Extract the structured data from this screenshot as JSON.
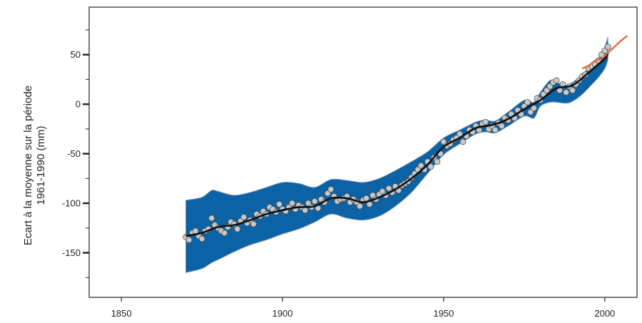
{
  "chart_data": {
    "type": "scatter",
    "ylabel_lines": [
      "Ecart à la moyenne sur la période",
      "1961-1990 (mm)"
    ],
    "xlim": [
      1840,
      2010
    ],
    "ylim": [
      -195,
      98
    ],
    "x_ticks": [
      1850,
      1900,
      1950,
      2000
    ],
    "y_ticks": [
      50,
      0,
      -50,
      -100,
      -150
    ],
    "y_minor_ticks": [
      75,
      25,
      -25,
      -75,
      -125,
      -175
    ],
    "grid": false,
    "colors": {
      "band": "#0b62a4",
      "smooth_line": "#111111",
      "points_fill": "#c8c8c8",
      "points_stroke": "#555555",
      "satellite": "#e06a3c",
      "axis": "#222222"
    },
    "uncertainty_band": {
      "x": [
        1870,
        1875,
        1878,
        1880,
        1885,
        1890,
        1895,
        1900,
        1905,
        1910,
        1915,
        1920,
        1925,
        1930,
        1935,
        1940,
        1945,
        1950,
        1955,
        1960,
        1963,
        1966,
        1970,
        1975,
        1978,
        1980,
        1983,
        1985,
        1988,
        1990,
        1993,
        1996,
        1998,
        2000,
        2001
      ],
      "upper": [
        -97,
        -94,
        -87,
        -88,
        -92,
        -89,
        -84,
        -79,
        -80,
        -84,
        -76,
        -77,
        -79,
        -75,
        -67,
        -58,
        -48,
        -34,
        -26,
        -18,
        -16,
        -17,
        -8,
        4,
        2,
        12,
        24,
        22,
        19,
        22,
        30,
        40,
        46,
        58,
        68
      ],
      "lower": [
        -170,
        -166,
        -160,
        -157,
        -149,
        -142,
        -137,
        -131,
        -126,
        -119,
        -111,
        -115,
        -117,
        -113,
        -103,
        -89,
        -70,
        -51,
        -40,
        -30,
        -28,
        -29,
        -22,
        -12,
        -14,
        -2,
        2,
        2,
        1,
        3,
        10,
        20,
        27,
        36,
        45
      ]
    },
    "smooth_line": {
      "x": [
        1870,
        1875,
        1880,
        1885,
        1890,
        1895,
        1900,
        1905,
        1910,
        1915,
        1920,
        1925,
        1930,
        1935,
        1940,
        1945,
        1950,
        1955,
        1960,
        1965,
        1970,
        1975,
        1980,
        1985,
        1990,
        1995,
        2000,
        2001
      ],
      "y": [
        -133,
        -130,
        -124,
        -122,
        -117,
        -111,
        -107,
        -104,
        -103,
        -95,
        -95,
        -99,
        -94,
        -86,
        -75,
        -61,
        -43,
        -34,
        -24,
        -21,
        -15,
        -5,
        4,
        16,
        19,
        32,
        46,
        52
      ]
    },
    "points": {
      "x": [
        1870,
        1871,
        1872,
        1873,
        1874,
        1875,
        1876,
        1877,
        1878,
        1879,
        1880,
        1881,
        1882,
        1883,
        1884,
        1885,
        1886,
        1887,
        1888,
        1889,
        1890,
        1891,
        1892,
        1893,
        1894,
        1895,
        1896,
        1897,
        1898,
        1899,
        1900,
        1901,
        1902,
        1903,
        1904,
        1905,
        1906,
        1907,
        1908,
        1909,
        1910,
        1911,
        1912,
        1913,
        1914,
        1915,
        1916,
        1917,
        1918,
        1919,
        1920,
        1921,
        1922,
        1923,
        1924,
        1925,
        1926,
        1927,
        1928,
        1929,
        1930,
        1931,
        1932,
        1933,
        1934,
        1935,
        1936,
        1937,
        1938,
        1939,
        1940,
        1941,
        1942,
        1943,
        1944,
        1945,
        1946,
        1947,
        1948,
        1949,
        1950,
        1951,
        1952,
        1953,
        1954,
        1955,
        1956,
        1957,
        1958,
        1959,
        1960,
        1961,
        1962,
        1963,
        1964,
        1965,
        1966,
        1967,
        1968,
        1969,
        1970,
        1971,
        1972,
        1973,
        1974,
        1975,
        1976,
        1977,
        1978,
        1979,
        1980,
        1981,
        1982,
        1983,
        1984,
        1985,
        1986,
        1987,
        1988,
        1989,
        1990,
        1991,
        1992,
        1993,
        1994,
        1995,
        1996,
        1997,
        1998,
        1999,
        2000,
        2001
      ],
      "y": [
        -134,
        -137,
        -130,
        -128,
        -133,
        -136,
        -128,
        -126,
        -115,
        -122,
        -125,
        -128,
        -130,
        -124,
        -119,
        -121,
        -126,
        -118,
        -114,
        -120,
        -117,
        -121,
        -111,
        -113,
        -108,
        -111,
        -104,
        -106,
        -109,
        -101,
        -106,
        -108,
        -104,
        -100,
        -106,
        -102,
        -104,
        -107,
        -100,
        -104,
        -98,
        -105,
        -96,
        -99,
        -90,
        -86,
        -93,
        -98,
        -96,
        -95,
        -93,
        -99,
        -96,
        -99,
        -103,
        -97,
        -95,
        -101,
        -92,
        -96,
        -91,
        -88,
        -92,
        -85,
        -89,
        -83,
        -87,
        -82,
        -80,
        -78,
        -74,
        -70,
        -66,
        -62,
        -66,
        -58,
        -63,
        -54,
        -58,
        -50,
        -38,
        -42,
        -40,
        -36,
        -34,
        -30,
        -38,
        -32,
        -26,
        -28,
        -22,
        -26,
        -20,
        -18,
        -25,
        -22,
        -26,
        -19,
        -22,
        -14,
        -16,
        -10,
        -14,
        -6,
        -10,
        -2,
        2,
        -8,
        -4,
        6,
        4,
        10,
        14,
        18,
        22,
        24,
        14,
        20,
        12,
        18,
        14,
        20,
        24,
        28,
        30,
        36,
        38,
        40,
        44,
        50,
        54,
        58
      ]
    },
    "satellite": {
      "x": [
        1993,
        1995,
        1997,
        1999,
        2001,
        2003,
        2005,
        2007
      ],
      "y": [
        36,
        39,
        44,
        46,
        52,
        58,
        64,
        69
      ]
    }
  }
}
